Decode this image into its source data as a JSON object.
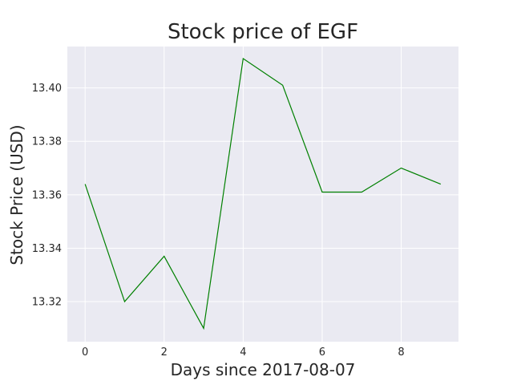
{
  "chart_data": {
    "type": "line",
    "title": "Stock price of EGF",
    "xlabel": "Days since 2017-08-07",
    "ylabel": "Stock Price (USD)",
    "x": [
      0,
      1,
      2,
      3,
      4,
      5,
      6,
      7,
      8,
      9
    ],
    "series": [
      {
        "name": "EGF",
        "values": [
          13.364,
          13.32,
          13.337,
          13.31,
          13.411,
          13.401,
          13.361,
          13.361,
          13.37,
          13.364
        ],
        "color": "#008000"
      }
    ],
    "xlim": [
      -0.45,
      9.45
    ],
    "ylim": [
      13.305,
      13.4155
    ],
    "xticks": [
      0,
      2,
      4,
      6,
      8
    ],
    "xtick_labels": [
      "0",
      "2",
      "4",
      "6",
      "8"
    ],
    "yticks": [
      13.32,
      13.34,
      13.36,
      13.38,
      13.4
    ],
    "ytick_labels": [
      "13.32",
      "13.34",
      "13.36",
      "13.38",
      "13.40"
    ],
    "grid": true,
    "plot_background": "#EAEAF2",
    "grid_color": "#FFFFFF",
    "text_color": "#262626"
  }
}
